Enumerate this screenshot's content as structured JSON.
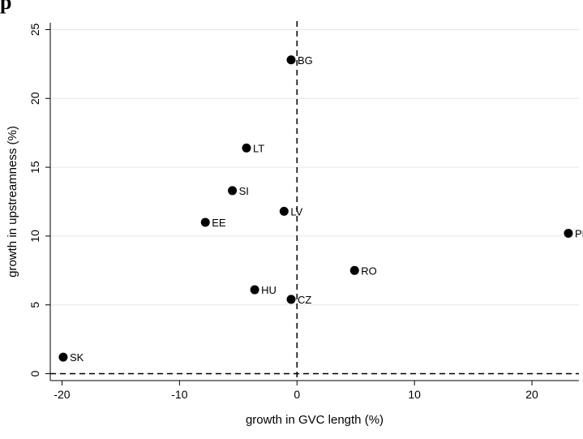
{
  "header": {
    "text": "p"
  },
  "chart_data": {
    "type": "scatter",
    "title": "",
    "xlabel": "growth in GVC length (%)",
    "ylabel": "growth in upstreamness (%)",
    "xlim": [
      -21,
      24
    ],
    "ylim": [
      -0.5,
      25.5
    ],
    "x_ticks": [
      -20,
      -10,
      0,
      10,
      20
    ],
    "x_tick_labels": [
      "-20",
      "-10",
      "0",
      "10",
      "20"
    ],
    "y_ticks": [
      0,
      5,
      10,
      15,
      20,
      25
    ],
    "y_tick_labels": [
      "0",
      "5",
      "10",
      "15",
      "20",
      "25"
    ],
    "grid": "horizontal",
    "reference_lines": {
      "x": 0,
      "y": 0,
      "style": "dashed"
    },
    "points": [
      {
        "label": "BG",
        "x": -0.5,
        "y": 22.8
      },
      {
        "label": "LT",
        "x": -4.3,
        "y": 16.4
      },
      {
        "label": "SI",
        "x": -5.5,
        "y": 13.3
      },
      {
        "label": "LV",
        "x": -1.1,
        "y": 11.8
      },
      {
        "label": "EE",
        "x": -7.8,
        "y": 11.0
      },
      {
        "label": "PL",
        "x": 23.1,
        "y": 10.2
      },
      {
        "label": "RO",
        "x": 4.9,
        "y": 7.5
      },
      {
        "label": "HU",
        "x": -3.6,
        "y": 6.1
      },
      {
        "label": "CZ",
        "x": -0.5,
        "y": 5.4
      },
      {
        "label": "SK",
        "x": -19.9,
        "y": 1.2
      }
    ],
    "marker_color": "#000000"
  }
}
